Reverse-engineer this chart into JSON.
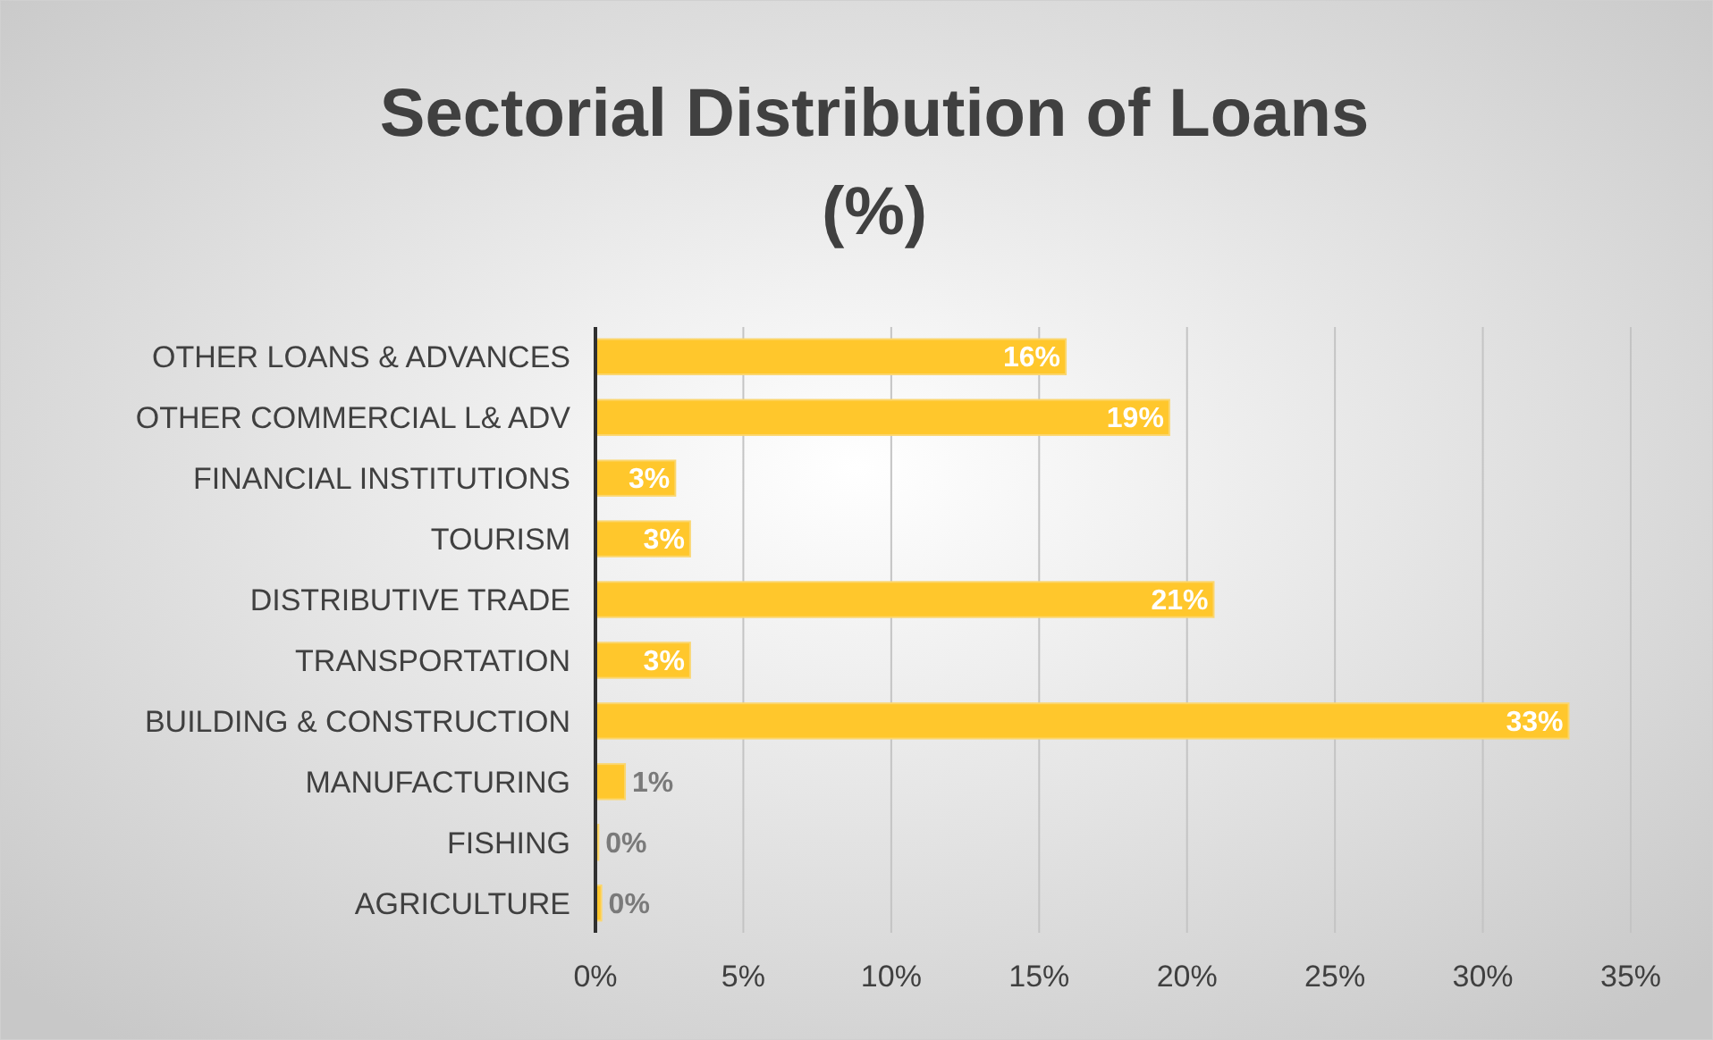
{
  "chart_data": {
    "type": "bar",
    "orientation": "horizontal",
    "title": "Sectorial Distribution of Loans\n(%)",
    "categories": [
      "OTHER LOANS & ADVANCES",
      "OTHER COMMERCIAL L& ADV",
      "FINANCIAL INSTITUTIONS",
      "TOURISM",
      "DISTRIBUTIVE TRADE",
      "TRANSPORTATION",
      "BUILDING & CONSTRUCTION",
      "MANUFACTURING",
      "FISHING",
      "AGRICULTURE"
    ],
    "values": [
      15.9,
      19.4,
      2.7,
      3.2,
      20.9,
      3.2,
      32.9,
      1.0,
      0.1,
      0.2
    ],
    "value_labels": [
      "16%",
      "19%",
      "3%",
      "3%",
      "21%",
      "3%",
      "33%",
      "1%",
      "0%",
      "0%"
    ],
    "color": "#ffc72c",
    "xlim": [
      0,
      35
    ],
    "xticks": [
      {
        "value": 0,
        "label": "0%"
      },
      {
        "value": 5,
        "label": "5%"
      },
      {
        "value": 10,
        "label": "10%"
      },
      {
        "value": 15,
        "label": "15%"
      },
      {
        "value": 20,
        "label": "20%"
      },
      {
        "value": 25,
        "label": "25%"
      },
      {
        "value": 30,
        "label": "30%"
      },
      {
        "value": 35,
        "label": "35%"
      }
    ],
    "grid": "x"
  }
}
